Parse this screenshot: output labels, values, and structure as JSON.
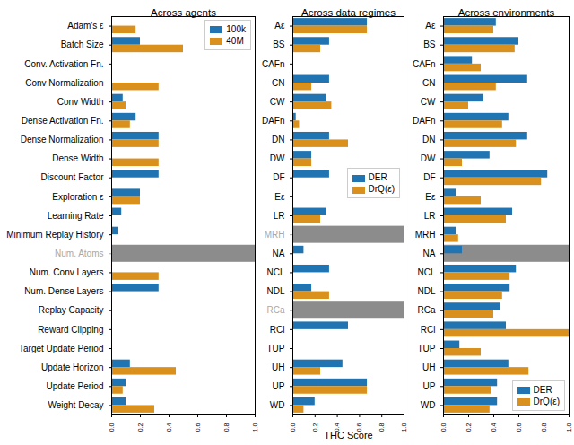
{
  "chart_data": [
    {
      "type": "bar",
      "orientation": "horizontal",
      "title": "Across agents",
      "categories": [
        "Adam's ε",
        "Batch Size",
        "Conv. Activation Fn.",
        "Conv Normalization",
        "Conv Width",
        "Dense Activation Fn.",
        "Dense Normalization",
        "Dense Width",
        "Discount Factor",
        "Exploration ε",
        "Learning Rate",
        "Minimum Replay History",
        "Num. Atoms",
        "Num. Conv Layers",
        "Num. Dense Layers",
        "Replay Capacity",
        "Reward Clipping",
        "Target Update Period",
        "Update Horizon",
        "Update Period",
        "Weight Decay"
      ],
      "series": [
        {
          "name": "100k",
          "color": "#1f74b1",
          "values": [
            0,
            0.2,
            0,
            0,
            0.08,
            0.17,
            0.33,
            0,
            0.33,
            0.2,
            0.07,
            0.05,
            null,
            0,
            0.33,
            0,
            0,
            0,
            0.13,
            0.1,
            0.1
          ]
        },
        {
          "name": "40M",
          "color": "#d9901c",
          "values": [
            0.17,
            0.5,
            0,
            0.33,
            0.1,
            0.13,
            0.33,
            0.33,
            0,
            0.2,
            0,
            0,
            null,
            0.33,
            0,
            0,
            0,
            0,
            0.45,
            0.08,
            0.3
          ]
        }
      ],
      "xlim": [
        0,
        1
      ],
      "xticks": [
        {
          "value": 0,
          "label": "0.0"
        },
        0.2,
        0.4,
        0.6,
        0.8,
        {
          "value": 1,
          "label": "1.0"
        }
      ],
      "legend": "upper right"
    },
    {
      "type": "bar",
      "orientation": "horizontal",
      "title": "Across data regimes",
      "xlabel": "THC Score",
      "categories": [
        "Aε",
        "BS",
        "CAFn",
        "CN",
        "CW",
        "DAFn",
        "DN",
        "DW",
        "DF",
        "Eε",
        "LR",
        "MRH",
        "NA",
        "NCL",
        "NDL",
        "RCa",
        "RCl",
        "TUP",
        "UH",
        "UP",
        "WD"
      ],
      "series": [
        {
          "name": "DER",
          "color": "#1f74b1",
          "values": [
            0.67,
            0.33,
            0,
            0.33,
            0.3,
            0.03,
            0.33,
            0.17,
            0.33,
            0,
            0.3,
            null,
            0.1,
            0.33,
            0.17,
            null,
            0.5,
            0,
            0.45,
            0.67,
            0.2
          ]
        },
        {
          "name": "DrQ(ε)",
          "color": "#d9901c",
          "values": [
            0.67,
            0.25,
            0,
            0.17,
            0.35,
            0.06,
            0.5,
            0.17,
            0,
            0,
            0.25,
            null,
            0,
            0,
            0.33,
            null,
            0,
            0,
            0.25,
            0.67,
            0.1
          ]
        }
      ],
      "xlim": [
        0,
        1
      ],
      "xticks": [
        {
          "value": 0,
          "label": "0.0"
        },
        0.2,
        0.4,
        0.6,
        0.8,
        {
          "value": 1,
          "label": "1.0"
        }
      ],
      "legend": "right"
    },
    {
      "type": "bar",
      "orientation": "horizontal",
      "title": "Across environments",
      "categories": [
        "Aε",
        "BS",
        "CAFn",
        "CN",
        "CW",
        "DAFn",
        "DN",
        "DW",
        "DF",
        "Eε",
        "LR",
        "MRH",
        "NA",
        "NCL",
        "NDL",
        "RCa",
        "RCl",
        "TUP",
        "UH",
        "UP",
        "WD"
      ],
      "series": [
        {
          "name": "DER",
          "color": "#1f74b1",
          "values": [
            0.42,
            0.6,
            0.23,
            0.67,
            0.32,
            0.52,
            0.67,
            0.37,
            0.83,
            0.1,
            0.55,
            0.1,
            0.15,
            0.58,
            0.53,
            0.45,
            0.5,
            0.13,
            0.52,
            0.43,
            0.43
          ]
        },
        {
          "name": "DrQ(ε)",
          "color": "#d9901c",
          "values": [
            0.4,
            0.57,
            0.3,
            0.42,
            0.2,
            0.47,
            0.58,
            0.15,
            0.78,
            0.3,
            0.5,
            0.12,
            null,
            0.53,
            0.47,
            0.4,
            1,
            0.3,
            0.68,
            0.38,
            0.37
          ]
        }
      ],
      "xlim": [
        0,
        1
      ],
      "xticks": [
        {
          "value": 0,
          "label": "0.0"
        },
        0.2,
        0.4,
        0.6,
        0.8,
        {
          "value": 1,
          "label": "1.0"
        }
      ],
      "legend": "lower right"
    }
  ]
}
